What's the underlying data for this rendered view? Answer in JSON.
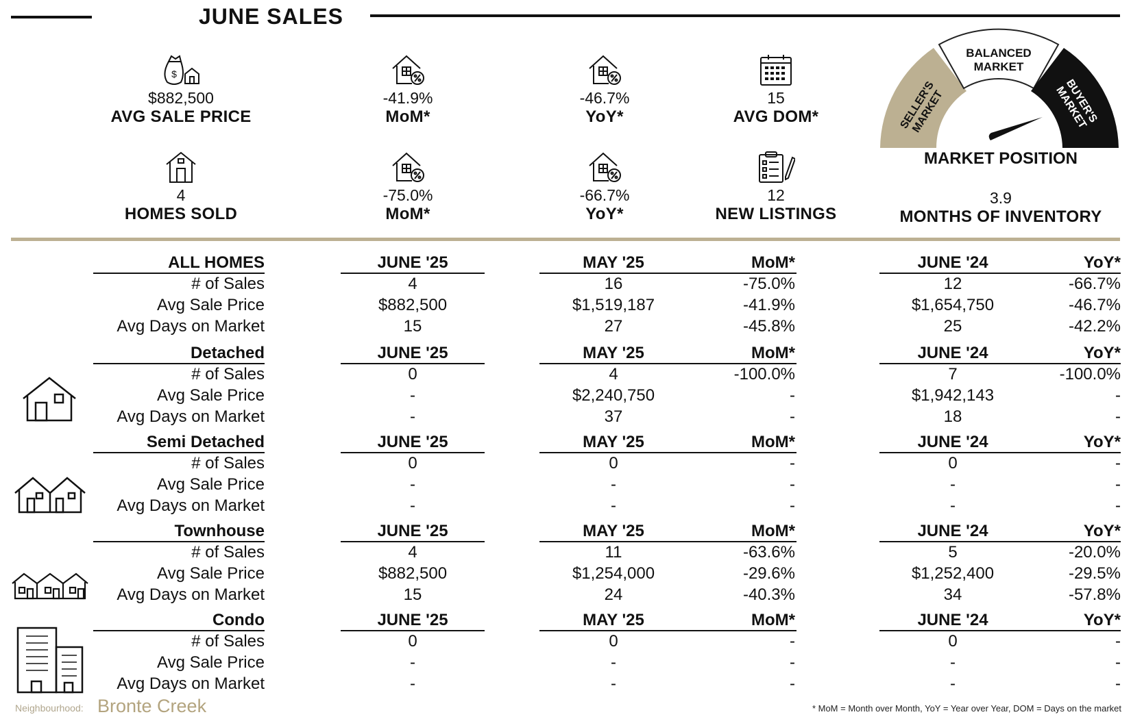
{
  "header": {
    "title": "JUNE SALES"
  },
  "kpis": {
    "avg_sale_price": {
      "value": "$882,500",
      "label": "AVG SALE PRICE",
      "icon": "money-bag-house-icon"
    },
    "price_mom": {
      "value": "-41.9%",
      "label": "MoM*",
      "icon": "house-percent-icon"
    },
    "price_yoy": {
      "value": "-46.7%",
      "label": "YoY*",
      "icon": "house-percent-icon"
    },
    "avg_dom": {
      "value": "15",
      "label": "AVG DOM*",
      "icon": "calendar-icon"
    },
    "homes_sold": {
      "value": "4",
      "label": "HOMES SOLD",
      "icon": "house-icon"
    },
    "sold_mom": {
      "value": "-75.0%",
      "label": "MoM*",
      "icon": "house-percent-icon"
    },
    "sold_yoy": {
      "value": "-66.7%",
      "label": "YoY*",
      "icon": "house-percent-icon"
    },
    "new_listings": {
      "value": "12",
      "label": "NEW LISTINGS",
      "icon": "clipboard-pen-icon"
    },
    "months_inventory": {
      "value": "3.9",
      "label": "MONTHS OF INVENTORY"
    }
  },
  "gauge": {
    "title": "MARKET POSITION",
    "segments": [
      "SELLER'S MARKET",
      "BALANCED MARKET",
      "BUYER'S MARKET"
    ],
    "seg_lines": {
      "sellers": [
        "SELLER'S",
        "MARKET"
      ],
      "balanced": [
        "BALANCED",
        "MARKET"
      ],
      "buyers": [
        "BUYER'S",
        "MARKET"
      ]
    },
    "colors": {
      "sellers": "#bcb092",
      "balanced": "#ffffff",
      "buyers": "#111111"
    }
  },
  "columns": {
    "june25": "JUNE '25",
    "may25": "MAY '25",
    "mom": "MoM*",
    "june24": "JUNE '24",
    "yoy": "YoY*"
  },
  "row_labels": {
    "sales": "# of Sales",
    "price": "Avg Sale Price",
    "dom": "Avg Days on Market"
  },
  "sections": {
    "all": {
      "title": "ALL HOMES",
      "sales": [
        "4",
        "16",
        "-75.0%",
        "12",
        "-66.7%"
      ],
      "price": [
        "$882,500",
        "$1,519,187",
        "-41.9%",
        "$1,654,750",
        "-46.7%"
      ],
      "dom": [
        "15",
        "27",
        "-45.8%",
        "25",
        "-42.2%"
      ]
    },
    "detached": {
      "title": "Detached",
      "icon": "detached-house-icon",
      "sales": [
        "0",
        "4",
        "-100.0%",
        "7",
        "-100.0%"
      ],
      "price": [
        "-",
        "$2,240,750",
        "-",
        "$1,942,143",
        "-"
      ],
      "dom": [
        "-",
        "37",
        "-",
        "18",
        "-"
      ]
    },
    "semi": {
      "title": "Semi Detached",
      "icon": "semi-detached-house-icon",
      "sales": [
        "0",
        "0",
        "-",
        "0",
        "-"
      ],
      "price": [
        "-",
        "-",
        "-",
        "-",
        "-"
      ],
      "dom": [
        "-",
        "-",
        "-",
        "-",
        "-"
      ]
    },
    "town": {
      "title": "Townhouse",
      "icon": "townhouse-icon",
      "sales": [
        "4",
        "11",
        "-63.6%",
        "5",
        "-20.0%"
      ],
      "price": [
        "$882,500",
        "$1,254,000",
        "-29.6%",
        "$1,252,400",
        "-29.5%"
      ],
      "dom": [
        "15",
        "24",
        "-40.3%",
        "34",
        "-57.8%"
      ]
    },
    "condo": {
      "title": "Condo",
      "icon": "condo-building-icon",
      "sales": [
        "0",
        "0",
        "-",
        "0",
        "-"
      ],
      "price": [
        "-",
        "-",
        "-",
        "-",
        "-"
      ],
      "dom": [
        "-",
        "-",
        "-",
        "-",
        "-"
      ]
    }
  },
  "footer": {
    "neighbourhood_label": "Neighbourhood:",
    "neighbourhood": "Bronte Creek",
    "note": "* MoM = Month over Month, YoY = Year over Year, DOM = Days on the market"
  },
  "accent_color": "#bcb092"
}
